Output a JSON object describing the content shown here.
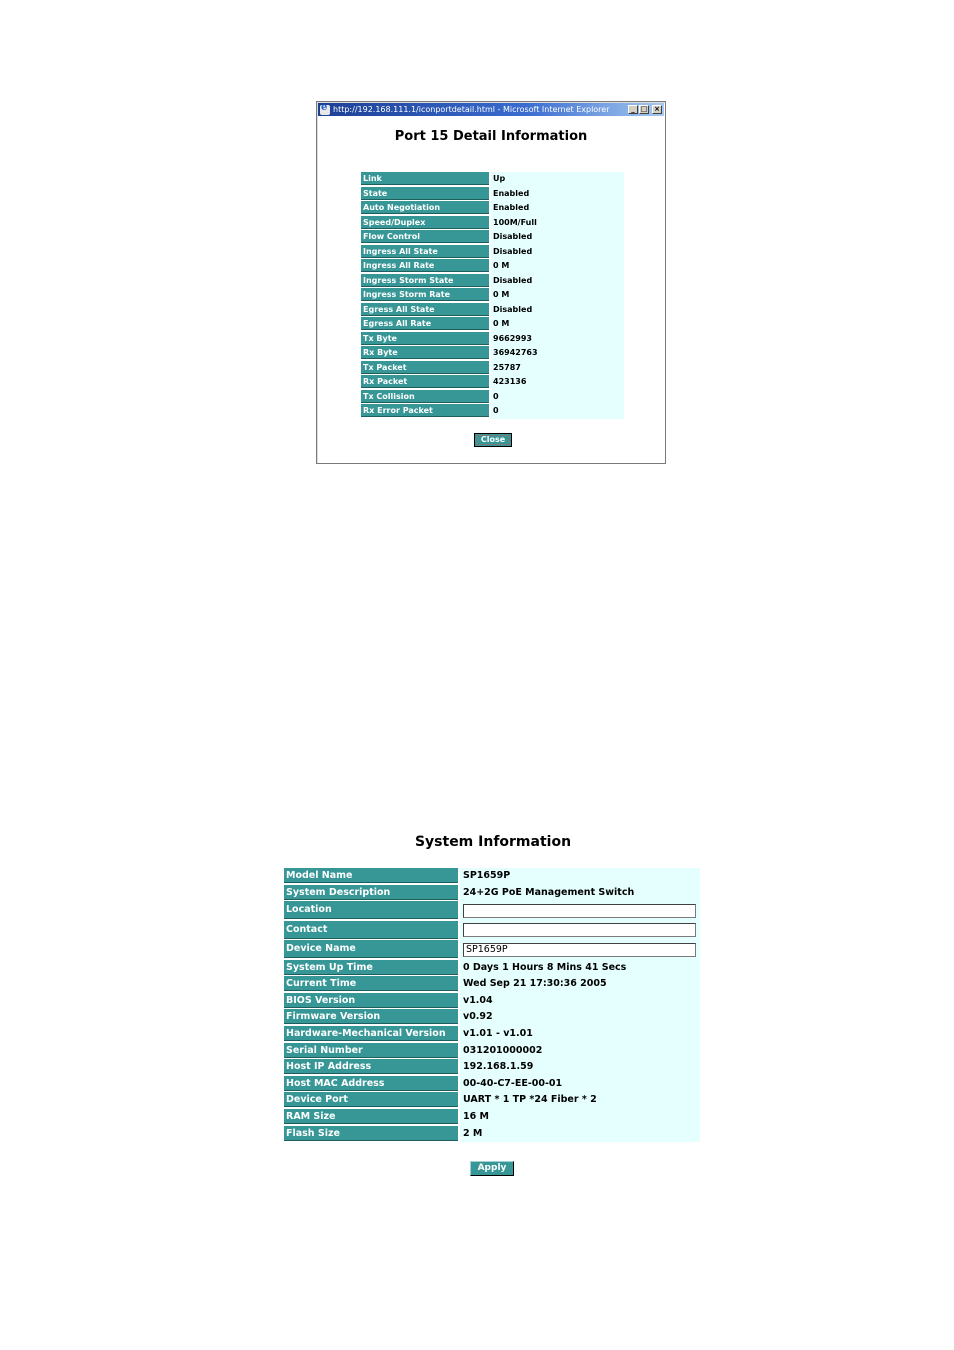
{
  "port_detail_window": {
    "titlebar": "http://192.168.111.1/iconportdetail.html - Microsoft Internet Explorer",
    "controls": {
      "minimize": "_",
      "maximize": "□",
      "close": "×"
    },
    "heading": "Port 15 Detail Information",
    "rows": [
      {
        "label": "Link",
        "value": "Up"
      },
      {
        "label": "State",
        "value": "Enabled"
      },
      {
        "label": "Auto Negotiation",
        "value": "Enabled"
      },
      {
        "label": "Speed/Duplex",
        "value": "100M/Full"
      },
      {
        "label": "Flow Control",
        "value": "Disabled"
      },
      {
        "label": "Ingress All State",
        "value": "Disabled"
      },
      {
        "label": "Ingress All Rate",
        "value": "0 M"
      },
      {
        "label": "Ingress Storm State",
        "value": "Disabled"
      },
      {
        "label": "Ingress Storm Rate",
        "value": "0 M"
      },
      {
        "label": "Egress All State",
        "value": "Disabled"
      },
      {
        "label": "Egress All Rate",
        "value": "0 M"
      },
      {
        "label": "Tx Byte",
        "value": "9662993"
      },
      {
        "label": "Rx Byte",
        "value": "36942763"
      },
      {
        "label": "Tx Packet",
        "value": "25787"
      },
      {
        "label": "Rx Packet",
        "value": "423136"
      },
      {
        "label": "Tx Collision",
        "value": "0"
      },
      {
        "label": "Rx Error Packet",
        "value": "0"
      }
    ],
    "close_label": "Close"
  },
  "system_information": {
    "heading": "System Information",
    "rows": [
      {
        "label": "Model Name",
        "value": "SP1659P"
      },
      {
        "label": "System Description",
        "value": "24+2G PoE Management Switch"
      },
      {
        "label": "Location",
        "value": ""
      },
      {
        "label": "Contact",
        "value": ""
      },
      {
        "label": "Device Name",
        "value": "SP1659P"
      },
      {
        "label": "System Up Time",
        "value": "0 Days 1 Hours 8 Mins 41 Secs"
      },
      {
        "label": "Current Time",
        "value": "Wed Sep 21 17:30:36 2005"
      },
      {
        "label": "BIOS Version",
        "value": "v1.04"
      },
      {
        "label": "Firmware Version",
        "value": "v0.92"
      },
      {
        "label": "Hardware-Mechanical Version",
        "value": "v1.01 - v1.01"
      },
      {
        "label": "Serial Number",
        "value": "031201000002"
      },
      {
        "label": "Host IP Address",
        "value": "192.168.1.59"
      },
      {
        "label": "Host MAC Address",
        "value": "00-40-C7-EE-00-01"
      },
      {
        "label": "Device Port",
        "value": "UART * 1 TP *24 Fiber * 2"
      },
      {
        "label": "RAM Size",
        "value": "16 M"
      },
      {
        "label": "Flash Size",
        "value": "2 M"
      }
    ],
    "apply_label": "Apply"
  },
  "colors": {
    "label_bg": "#379696",
    "value_bg": "#e5ffff",
    "titlebar_start": "#1c3f94",
    "titlebar_end": "#a6caf0"
  }
}
